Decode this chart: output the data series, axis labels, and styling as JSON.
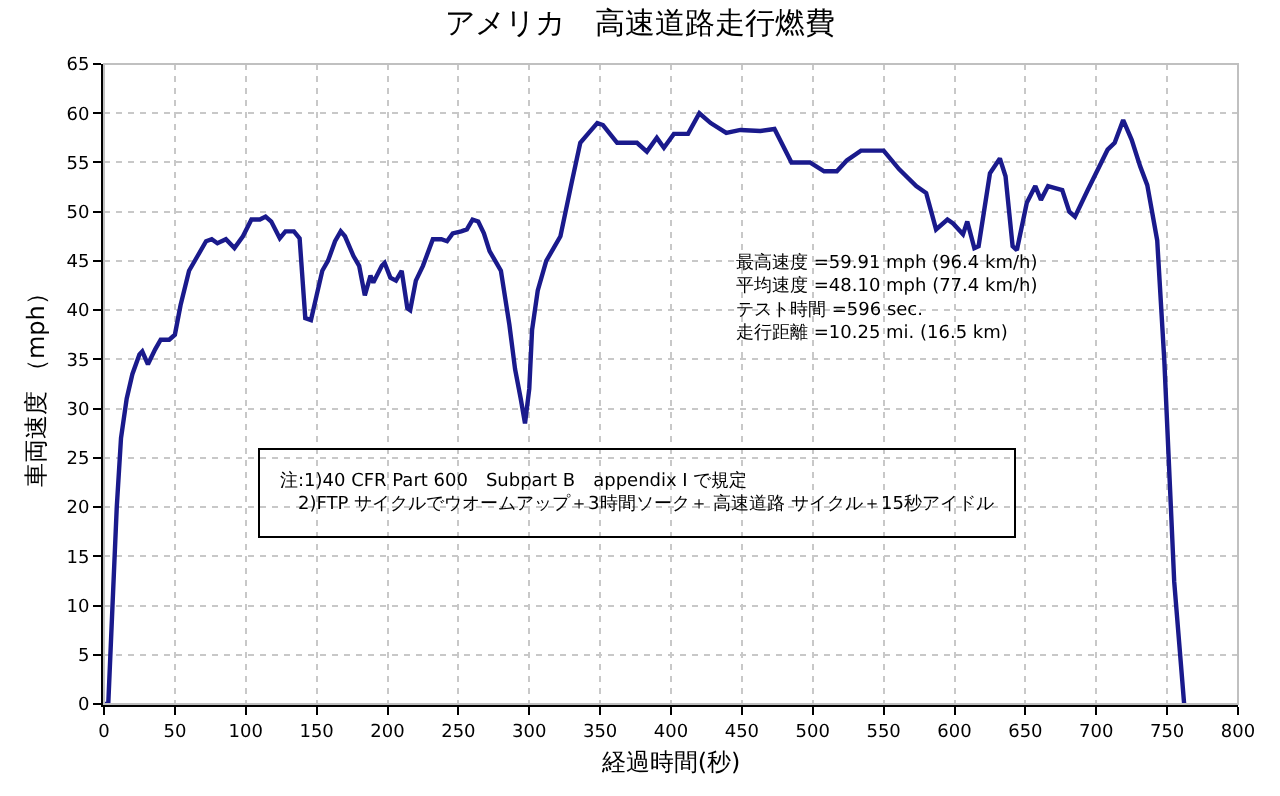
{
  "chart_data": {
    "type": "line",
    "title": "アメリカ　高速道路走行燃費",
    "xlabel": "経過時間(秒)",
    "ylabel": "車両速度 （mph）",
    "x": [
      0,
      3,
      6,
      9,
      12,
      16,
      20,
      25,
      27,
      31,
      36,
      40,
      46,
      50,
      54,
      60,
      66,
      72,
      76,
      80,
      86,
      92,
      98,
      104,
      110,
      114,
      118,
      124,
      128,
      134,
      138,
      142,
      146,
      150,
      154,
      158,
      163,
      167,
      170,
      176,
      180,
      184,
      188,
      190,
      196,
      198,
      202,
      206,
      210,
      214,
      216,
      220,
      225,
      232,
      238,
      242,
      246,
      252,
      256,
      260,
      264,
      268,
      272,
      276,
      280,
      286,
      290,
      294,
      297,
      300,
      302,
      306,
      312,
      318,
      322,
      330,
      336,
      342,
      348,
      352,
      362,
      376,
      383,
      390,
      395,
      402,
      412,
      420,
      428,
      439,
      449,
      463,
      473,
      485,
      498,
      508,
      517,
      524,
      534,
      550,
      561,
      573,
      580,
      587,
      595,
      599,
      606,
      609,
      614,
      617,
      625,
      632,
      636,
      641,
      644,
      651,
      657,
      661,
      666,
      671,
      676,
      681,
      685,
      694,
      708,
      713,
      719,
      725,
      731,
      736,
      743,
      748,
      755,
      762
    ],
    "series": [
      {
        "color": "#1a1a8c",
        "values": [
          0,
          0,
          10,
          20,
          27,
          31,
          33.5,
          35.5,
          35.8,
          34.5,
          36,
          37,
          37,
          37.5,
          40.5,
          44,
          45.5,
          47,
          47.2,
          46.8,
          47.2,
          46.3,
          47.5,
          49.2,
          49.2,
          49.5,
          49,
          47.3,
          48,
          48,
          47.3,
          39.2,
          39,
          41.5,
          44,
          45,
          47,
          48,
          47.5,
          45.5,
          44.5,
          41.5,
          43.5,
          42.8,
          44.5,
          44.8,
          43.3,
          43,
          44,
          40.2,
          40,
          43,
          44.5,
          47.2,
          47.2,
          47,
          47.8,
          48,
          48.2,
          49.2,
          49,
          47.8,
          46,
          45,
          44,
          38.5,
          34,
          31,
          28.5,
          32,
          38,
          42,
          45,
          46.5,
          47.5,
          53,
          57,
          58,
          59,
          58.8,
          57,
          57,
          56.1,
          57.5,
          56.5,
          57.9,
          57.9,
          60,
          59,
          58,
          58.3,
          58.2,
          58.4,
          55,
          55,
          54.1,
          54.1,
          55.2,
          56.2,
          56.2,
          54.3,
          52.6,
          51.9,
          48.2,
          49.2,
          48.8,
          47.7,
          49,
          46.3,
          46.5,
          53.9,
          55.4,
          53.6,
          46.5,
          46.1,
          50.9,
          52.6,
          51.2,
          52.6,
          52.4,
          52.2,
          50,
          49.5,
          52.2,
          56.3,
          57,
          59.3,
          57.3,
          54.6,
          52.7,
          47.1,
          34.9,
          12.4,
          0
        ]
      }
    ],
    "xlim": [
      0,
      800
    ],
    "xticks": [
      0,
      50,
      100,
      150,
      200,
      250,
      300,
      350,
      400,
      450,
      500,
      550,
      600,
      650,
      700,
      750,
      800
    ],
    "ylim": [
      0,
      65
    ],
    "yticks": [
      0,
      5,
      10,
      15,
      20,
      25,
      30,
      35,
      40,
      45,
      50,
      55,
      60,
      65
    ],
    "grid": true,
    "marker": "none",
    "line_style": "solid",
    "annotations": [
      "最高速度 =59.91 mph (96.4 km/h)\n平均速度 =48.10 mph (77.4 km/h)\nテスト時間 =596 sec.\n走行距離 =10.25 mi. (16.5 km)",
      "注:1)40 CFR Part 600　Subpart B　appendix I で規定\n　2)FTP サイクルでウオームアップ＋3時間ソーク＋ 高速道路 サイクル＋15秒アイドル"
    ]
  }
}
